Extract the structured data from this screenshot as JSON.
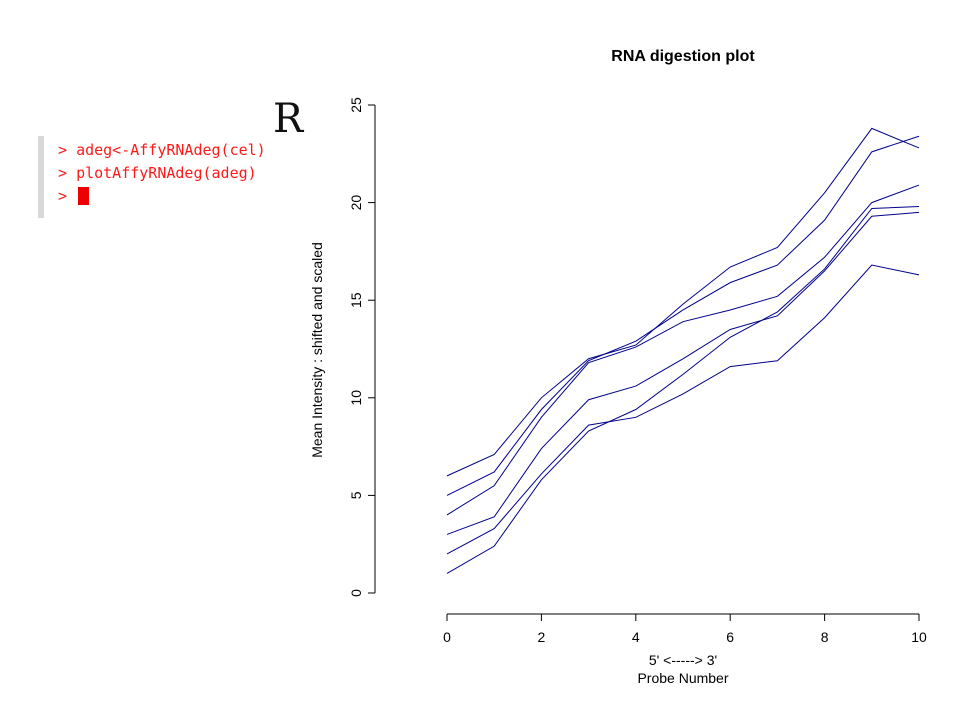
{
  "logo": "R",
  "console": {
    "prompt": ">",
    "lines": [
      "adeg<-AffyRNAdeg(cel)",
      "plotAffyRNAdeg(adeg)",
      ""
    ]
  },
  "chart_data": {
    "type": "line",
    "title": "RNA digestion plot",
    "xlabel": "5' <-----> 3'",
    "xlabel2": "Probe Number",
    "ylabel": "Mean Intensity : shifted and scaled",
    "xlim": [
      0,
      10
    ],
    "ylim": [
      0,
      25
    ],
    "xticks": [
      0,
      2,
      4,
      6,
      8,
      10
    ],
    "yticks": [
      0,
      5,
      10,
      15,
      20,
      25
    ],
    "grid": false,
    "line_color": "#00008b",
    "x": [
      0,
      1,
      2,
      3,
      4,
      5,
      6,
      7,
      8,
      9,
      10
    ],
    "series": [
      {
        "values": [
          1,
          2.4,
          5.8,
          8.3,
          9.4,
          11.2,
          13.1,
          14.4,
          16.6,
          19.7,
          19.8
        ]
      },
      {
        "values": [
          2,
          3.3,
          6.1,
          8.6,
          9.0,
          10.2,
          11.6,
          11.9,
          14.1,
          16.8,
          16.3
        ]
      },
      {
        "values": [
          3,
          3.9,
          7.4,
          9.9,
          10.6,
          12.0,
          13.5,
          14.2,
          16.5,
          19.3,
          19.5
        ]
      },
      {
        "values": [
          4,
          5.5,
          9.0,
          11.8,
          12.6,
          13.9,
          14.5,
          15.2,
          17.2,
          20.0,
          20.9
        ]
      },
      {
        "values": [
          5,
          6.2,
          9.4,
          11.9,
          12.9,
          14.5,
          15.9,
          16.8,
          19.1,
          22.6,
          23.4
        ]
      },
      {
        "values": [
          6,
          7.1,
          10.0,
          12.0,
          12.7,
          14.8,
          16.7,
          17.7,
          20.5,
          23.8,
          22.8
        ]
      }
    ]
  }
}
